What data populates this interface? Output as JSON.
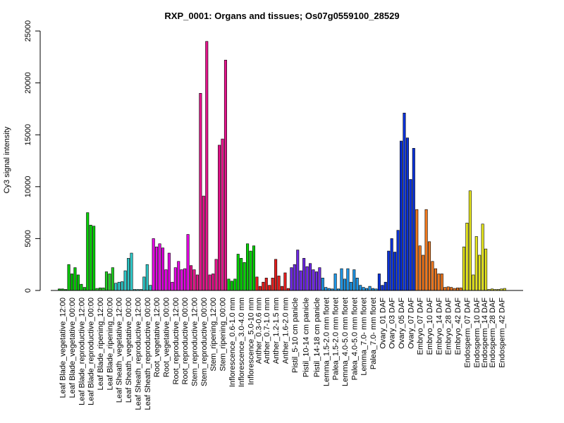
{
  "chart_data": {
    "type": "bar",
    "title": "RXP_0001: Organs and tissues; Os07g0559100_28529",
    "xlabel": "",
    "ylabel": "Cy3 signal intensity",
    "ylim": [
      0,
      25000
    ],
    "yticks": [
      0,
      5000,
      10000,
      15000,
      20000,
      25000
    ],
    "grid": false,
    "groups": [
      {
        "name": "Leaf Blade_vegetative_12:00",
        "color": "#00b400",
        "values": [
          150,
          150,
          100
        ]
      },
      {
        "name": "Leaf Blade_vegetative_00:00",
        "color": "#00c800",
        "values": [
          2500,
          1600,
          2200
        ]
      },
      {
        "name": "Leaf Blade_reproductive_12:00",
        "color": "#00cc00",
        "values": [
          1500,
          600,
          300
        ]
      },
      {
        "name": "Leaf Blade_reproductive_00:00",
        "color": "#00d200",
        "values": [
          7500,
          6300,
          6200
        ]
      },
      {
        "name": "Leaf Blade_ripening_12:00",
        "color": "#22d022",
        "values": [
          200,
          250,
          250
        ]
      },
      {
        "name": "Leaf Blade_ripening_00:00",
        "color": "#22d022",
        "values": [
          1800,
          1600,
          2200
        ]
      },
      {
        "name": "Leaf Sheath_vegetative_12:00",
        "color": "#2ec8c8",
        "values": [
          700,
          800,
          850
        ]
      },
      {
        "name": "Leaf Sheath_vegetative_00:00",
        "color": "#2ec8c8",
        "values": [
          1900,
          3100,
          3600
        ]
      },
      {
        "name": "Leaf Sheath_reproductive_12:00",
        "color": "#2ec8c8",
        "values": [
          100,
          100,
          100
        ]
      },
      {
        "name": "Leaf Sheath_reproductive_00:00",
        "color": "#2ec8c8",
        "values": [
          1300,
          2500,
          500
        ]
      },
      {
        "name": "Root_vegetative_12:00",
        "color": "#e600e6",
        "values": [
          5000,
          4200,
          4500
        ]
      },
      {
        "name": "Root_vegetative_00:00",
        "color": "#e600e6",
        "values": [
          4100,
          2000,
          3600
        ]
      },
      {
        "name": "Root_reproductive_12:00",
        "color": "#e600e6",
        "values": [
          800,
          2200,
          2800
        ]
      },
      {
        "name": "Root_reproductive_00:00",
        "color": "#e600e6",
        "values": [
          2000,
          2100,
          5400
        ]
      },
      {
        "name": "Stem_reproductive_12:00",
        "color": "#e6148c",
        "values": [
          2400,
          2000,
          1500
        ]
      },
      {
        "name": "Stem_reproductive_00:00",
        "color": "#e6148c",
        "values": [
          19000,
          9100,
          24000
        ]
      },
      {
        "name": "Stem_ripening_12:00",
        "color": "#e6148c",
        "values": [
          1500,
          1600,
          3000
        ]
      },
      {
        "name": "Stem_ripening_00:00",
        "color": "#e6148c",
        "values": [
          14000,
          14600,
          22200
        ]
      },
      {
        "name": "Inflorescence_0.6-1.0 mm",
        "color": "#00d200",
        "values": [
          1100,
          900,
          1100
        ]
      },
      {
        "name": "Inflorescence_3.0-4.0 mm",
        "color": "#00d200",
        "values": [
          3500,
          3100,
          2700
        ]
      },
      {
        "name": "Inflorescence_5.0-10 mm",
        "color": "#00d200",
        "values": [
          4500,
          3800,
          4300
        ]
      },
      {
        "name": "Anther_0.3-0.6 mm",
        "color": "#e61e1e",
        "values": [
          1300,
          400
        ]
      },
      {
        "name": "Anther_0.7-1.0 mm",
        "color": "#e61e1e",
        "values": [
          800,
          1200,
          500
        ]
      },
      {
        "name": "Anther_1.2-1.5 mm",
        "color": "#e61e1e",
        "values": [
          1200,
          3000,
          1400
        ]
      },
      {
        "name": "Anther_1.6-2.0 mm",
        "color": "#e61e1e",
        "values": [
          400,
          1700,
          200
        ]
      },
      {
        "name": "Pistil_5-10 cm panicle",
        "color": "#6e28e6",
        "values": [
          2200,
          2500,
          3900
        ]
      },
      {
        "name": "Pistil_10-14 cm panicle",
        "color": "#6e28e6",
        "values": [
          1900,
          3100,
          2300,
          2600
        ]
      },
      {
        "name": "Pistil_14-18 cm panicle",
        "color": "#6e28e6",
        "values": [
          2000,
          1800,
          2200
        ]
      },
      {
        "name": "Lemma_1.5-2.0 mm floret",
        "color": "#1e96e6",
        "values": [
          1200,
          300,
          200
        ]
      },
      {
        "name": "Palea_1.5-2.0 mm floret",
        "color": "#1e96e6",
        "values": [
          150,
          1600,
          150
        ]
      },
      {
        "name": "Lemma_4.0-5.0 mm floret",
        "color": "#1e96e6",
        "values": [
          2100,
          1100,
          2100
        ]
      },
      {
        "name": "Palea_4.0-5.0 mm floret",
        "color": "#1e96e6",
        "values": [
          800,
          2000,
          1200
        ]
      },
      {
        "name": "Lemma_7.0- mm floret",
        "color": "#1e96e6",
        "values": [
          500,
          300,
          200
        ]
      },
      {
        "name": "Palea_7.0- mm floret",
        "color": "#1e96e6",
        "values": [
          400,
          200,
          150
        ]
      },
      {
        "name": "Ovary_01 DAF",
        "color": "#0a32dc",
        "values": [
          1600,
          500,
          800
        ]
      },
      {
        "name": "Ovary_03 DAF",
        "color": "#0a32dc",
        "values": [
          3800,
          5000,
          3700
        ]
      },
      {
        "name": "Ovary_05 DAF",
        "color": "#0a32dc",
        "values": [
          5800,
          14400,
          17100
        ]
      },
      {
        "name": "Ovary_07 DAF",
        "color": "#0a32dc",
        "values": [
          14700,
          10700,
          13700
        ]
      },
      {
        "name": "Embryo_07 DAF",
        "color": "#f0781e",
        "values": [
          7800,
          4300,
          3400
        ]
      },
      {
        "name": "Embryo_10 DAF",
        "color": "#f0781e",
        "values": [
          7800,
          4700,
          2800
        ]
      },
      {
        "name": "Embryo_14 DAF",
        "color": "#f0781e",
        "values": [
          2100,
          1600,
          1600
        ]
      },
      {
        "name": "Embryo_28 DAF",
        "color": "#f0781e",
        "values": [
          300,
          350,
          300
        ]
      },
      {
        "name": "Embryo_42 DAF",
        "color": "#f0781e",
        "values": [
          200,
          250,
          250
        ]
      },
      {
        "name": "Endosperm_07 DAF",
        "color": "#e6e61e",
        "values": [
          4200,
          6500,
          9600
        ]
      },
      {
        "name": "Endosperm_10 DAF",
        "color": "#e6e61e",
        "values": [
          1500,
          5200,
          3400
        ]
      },
      {
        "name": "Endosperm_14 DAF",
        "color": "#e6e61e",
        "values": [
          6400,
          4000
        ]
      },
      {
        "name": "Endosperm_28 DAF",
        "color": "#e6e61e",
        "values": [
          100,
          150,
          100
        ]
      },
      {
        "name": "Endosperm_42 DAF",
        "color": "#e6e61e",
        "values": [
          100,
          150,
          200
        ]
      }
    ]
  }
}
